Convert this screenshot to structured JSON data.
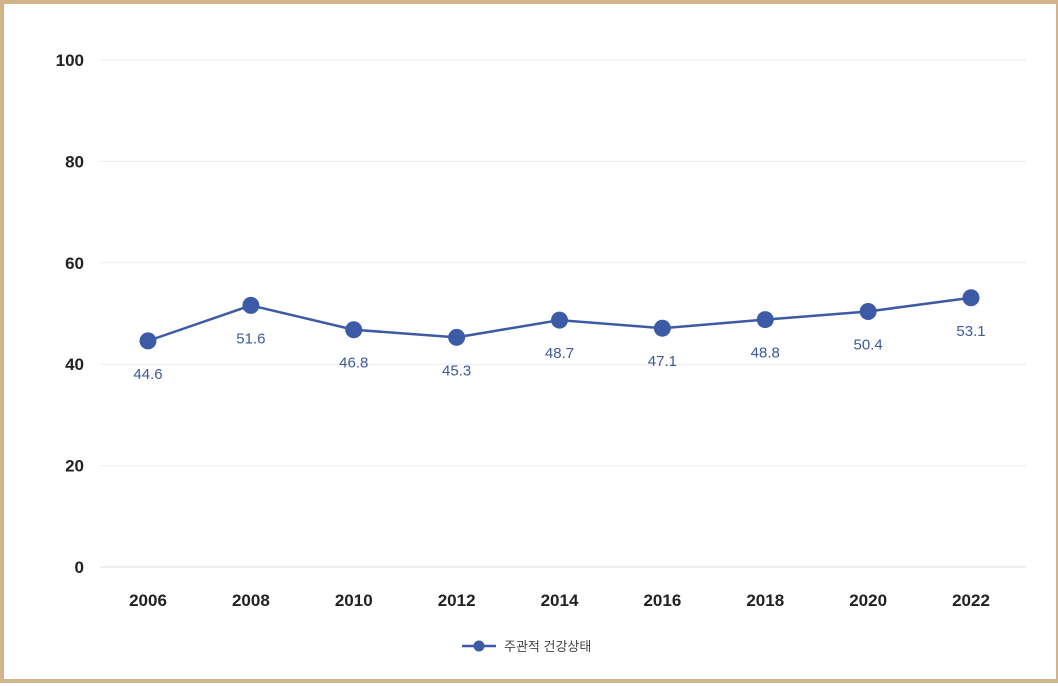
{
  "chart_data": {
    "type": "line",
    "title": "",
    "xlabel": "",
    "ylabel": "",
    "ylim": [
      0,
      100
    ],
    "yticks": [
      "0",
      "20",
      "40",
      "60",
      "80",
      "100"
    ],
    "categories": [
      "2006",
      "2008",
      "2010",
      "2012",
      "2014",
      "2016",
      "2018",
      "2020",
      "2022"
    ],
    "series": [
      {
        "name": "주관적 건강상태",
        "values": [
          44.6,
          51.6,
          46.8,
          45.3,
          48.7,
          47.1,
          48.8,
          50.4,
          53.1
        ],
        "labels": [
          "44.6",
          "51.6",
          "46.8",
          "45.3",
          "48.7",
          "47.1",
          "48.8",
          "50.4",
          "53.1"
        ],
        "color": "#3c5aa6"
      }
    ],
    "grid": true,
    "legend_position": "bottom-center"
  }
}
